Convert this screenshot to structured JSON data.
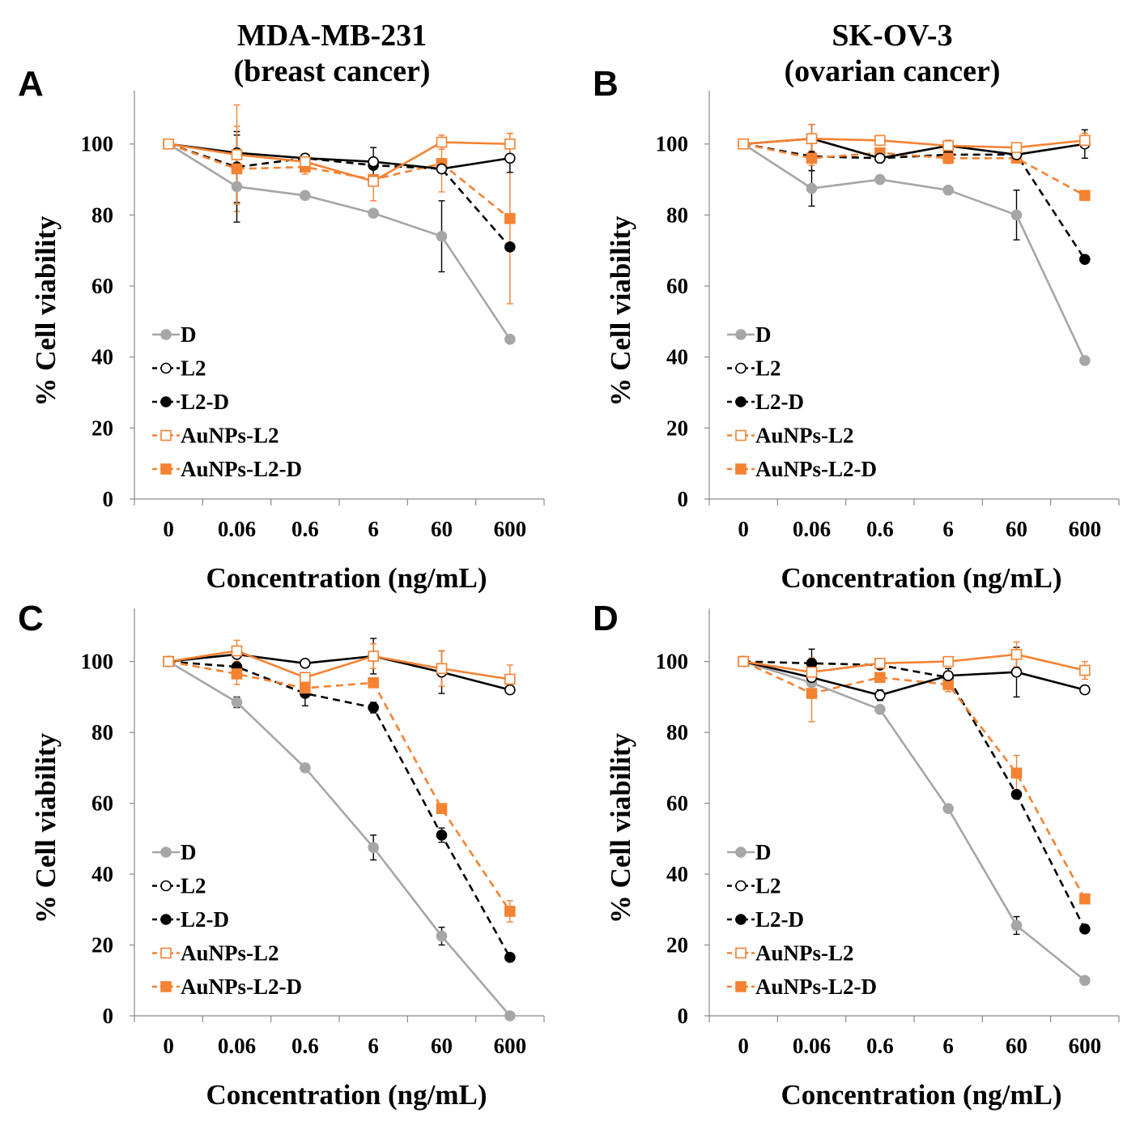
{
  "column_titles": [
    {
      "line1": "MDA-MB-231",
      "line2": "(breast cancer)"
    },
    {
      "line1": "SK-OV-3",
      "line2": "(ovarian cancer)"
    }
  ],
  "colors": {
    "D": "#a6a6a6",
    "L2": "#000000",
    "L2-D": "#000000",
    "AuNPs-L2": "#f58232",
    "AuNPs-L2-D": "#f58232"
  },
  "chart_data": [
    {
      "panel": "A",
      "type": "line",
      "xlabel": "Concentration (ng/mL)",
      "ylabel": "% Cell viability",
      "categories": [
        "0",
        "0.06",
        "0.6",
        "6",
        "60",
        "600"
      ],
      "ylim": [
        0,
        115
      ],
      "yticks": [
        "0",
        "20",
        "40",
        "60",
        "80",
        "100"
      ],
      "legend": "lower-left",
      "series": [
        {
          "name": "D",
          "values": [
            100,
            88,
            85.5,
            80.5,
            74,
            45
          ],
          "errors": [
            0,
            10,
            0,
            0,
            10,
            0
          ]
        },
        {
          "name": "L2",
          "values": [
            100,
            97.5,
            96,
            95,
            93,
            96
          ],
          "errors": [
            0,
            5,
            0,
            4,
            0,
            4
          ]
        },
        {
          "name": "L2-D",
          "values": [
            100,
            93.5,
            96,
            94,
            93,
            71
          ],
          "errors": [
            0,
            10,
            0,
            0,
            0,
            0
          ]
        },
        {
          "name": "AuNPs-L2",
          "values": [
            100,
            97,
            95,
            89.5,
            100.5,
            100
          ],
          "errors": [
            0,
            14,
            0,
            0,
            2,
            3
          ]
        },
        {
          "name": "AuNPs-L2-D",
          "values": [
            100,
            93,
            93.5,
            90,
            94.5,
            79
          ],
          "errors": [
            0,
            12,
            2,
            6,
            8,
            24
          ]
        }
      ]
    },
    {
      "panel": "B",
      "type": "line",
      "xlabel": "Concentration (ng/mL)",
      "ylabel": "% Cell viability",
      "categories": [
        "0",
        "0.06",
        "0.6",
        "6",
        "60",
        "600"
      ],
      "ylim": [
        0,
        115
      ],
      "yticks": [
        "0",
        "20",
        "40",
        "60",
        "80",
        "100"
      ],
      "legend": "lower-left",
      "series": [
        {
          "name": "D",
          "values": [
            100,
            87.5,
            90,
            87,
            80,
            39
          ],
          "errors": [
            0,
            5,
            0,
            0,
            7,
            0
          ]
        },
        {
          "name": "L2",
          "values": [
            100,
            101.5,
            96,
            99.5,
            97,
            100
          ],
          "errors": [
            0,
            4,
            0,
            1.5,
            0,
            4
          ]
        },
        {
          "name": "L2-D",
          "values": [
            100,
            96.5,
            96,
            97,
            97,
            67.5
          ],
          "errors": [
            0,
            4,
            0,
            0,
            0,
            0
          ]
        },
        {
          "name": "AuNPs-L2",
          "values": [
            100,
            101.5,
            101,
            99.5,
            99,
            101
          ],
          "errors": [
            0,
            4,
            0,
            1.5,
            0,
            2
          ]
        },
        {
          "name": "AuNPs-L2-D",
          "values": [
            100,
            96,
            97.5,
            96,
            96,
            85.5
          ],
          "errors": [
            0,
            2,
            0,
            1.5,
            0,
            0
          ]
        }
      ]
    },
    {
      "panel": "C",
      "type": "line",
      "xlabel": "Concentration (ng/mL)",
      "ylabel": "% Cell viability",
      "categories": [
        "0",
        "0.06",
        "0.6",
        "6",
        "60",
        "600"
      ],
      "ylim": [
        0,
        115
      ],
      "yticks": [
        "0",
        "20",
        "40",
        "60",
        "80",
        "100"
      ],
      "legend": "lower-left",
      "series": [
        {
          "name": "D",
          "values": [
            100,
            88.5,
            70,
            47.5,
            22.5,
            0
          ],
          "errors": [
            0,
            1.5,
            0,
            3.5,
            2.5,
            0
          ]
        },
        {
          "name": "L2",
          "values": [
            100,
            102,
            99.5,
            101.5,
            97,
            92
          ],
          "errors": [
            0,
            0,
            0,
            5,
            6,
            0
          ]
        },
        {
          "name": "L2-D",
          "values": [
            100,
            98.5,
            91,
            87,
            51,
            16.5
          ],
          "errors": [
            0,
            0,
            3.5,
            1.5,
            2,
            0
          ]
        },
        {
          "name": "AuNPs-L2",
          "values": [
            100,
            103,
            95.5,
            101.5,
            98,
            95
          ],
          "errors": [
            0,
            3,
            0,
            3.5,
            5,
            4
          ]
        },
        {
          "name": "AuNPs-L2-D",
          "values": [
            100,
            96.5,
            92.5,
            94,
            58.5,
            29.5
          ],
          "errors": [
            0,
            3,
            0,
            0,
            0,
            3
          ]
        }
      ]
    },
    {
      "panel": "D",
      "type": "line",
      "xlabel": "Concentration (ng/mL)",
      "ylabel": "% Cell viability",
      "categories": [
        "0",
        "0.06",
        "0.6",
        "6",
        "60",
        "600"
      ],
      "ylim": [
        0,
        115
      ],
      "yticks": [
        "0",
        "20",
        "40",
        "60",
        "80",
        "100"
      ],
      "legend": "lower-left",
      "series": [
        {
          "name": "D",
          "values": [
            100,
            94,
            86.5,
            58.5,
            25.5,
            10
          ],
          "errors": [
            0,
            0,
            0,
            0,
            2.5,
            0
          ]
        },
        {
          "name": "L2",
          "values": [
            100,
            95.5,
            90.5,
            96,
            97,
            92
          ],
          "errors": [
            0,
            0,
            1.5,
            2,
            7,
            0
          ]
        },
        {
          "name": "L2-D",
          "values": [
            100,
            99.5,
            99,
            95.5,
            62.5,
            24.5
          ],
          "errors": [
            0,
            4,
            0,
            0,
            0,
            0
          ]
        },
        {
          "name": "AuNPs-L2",
          "values": [
            100,
            97,
            99.5,
            100,
            102,
            97.5
          ],
          "errors": [
            0,
            4,
            0,
            0,
            3.5,
            2.5
          ]
        },
        {
          "name": "AuNPs-L2-D",
          "values": [
            100,
            91,
            95.5,
            93.5,
            68.5,
            33
          ],
          "errors": [
            0,
            8,
            0,
            2,
            5,
            0
          ]
        }
      ]
    }
  ]
}
